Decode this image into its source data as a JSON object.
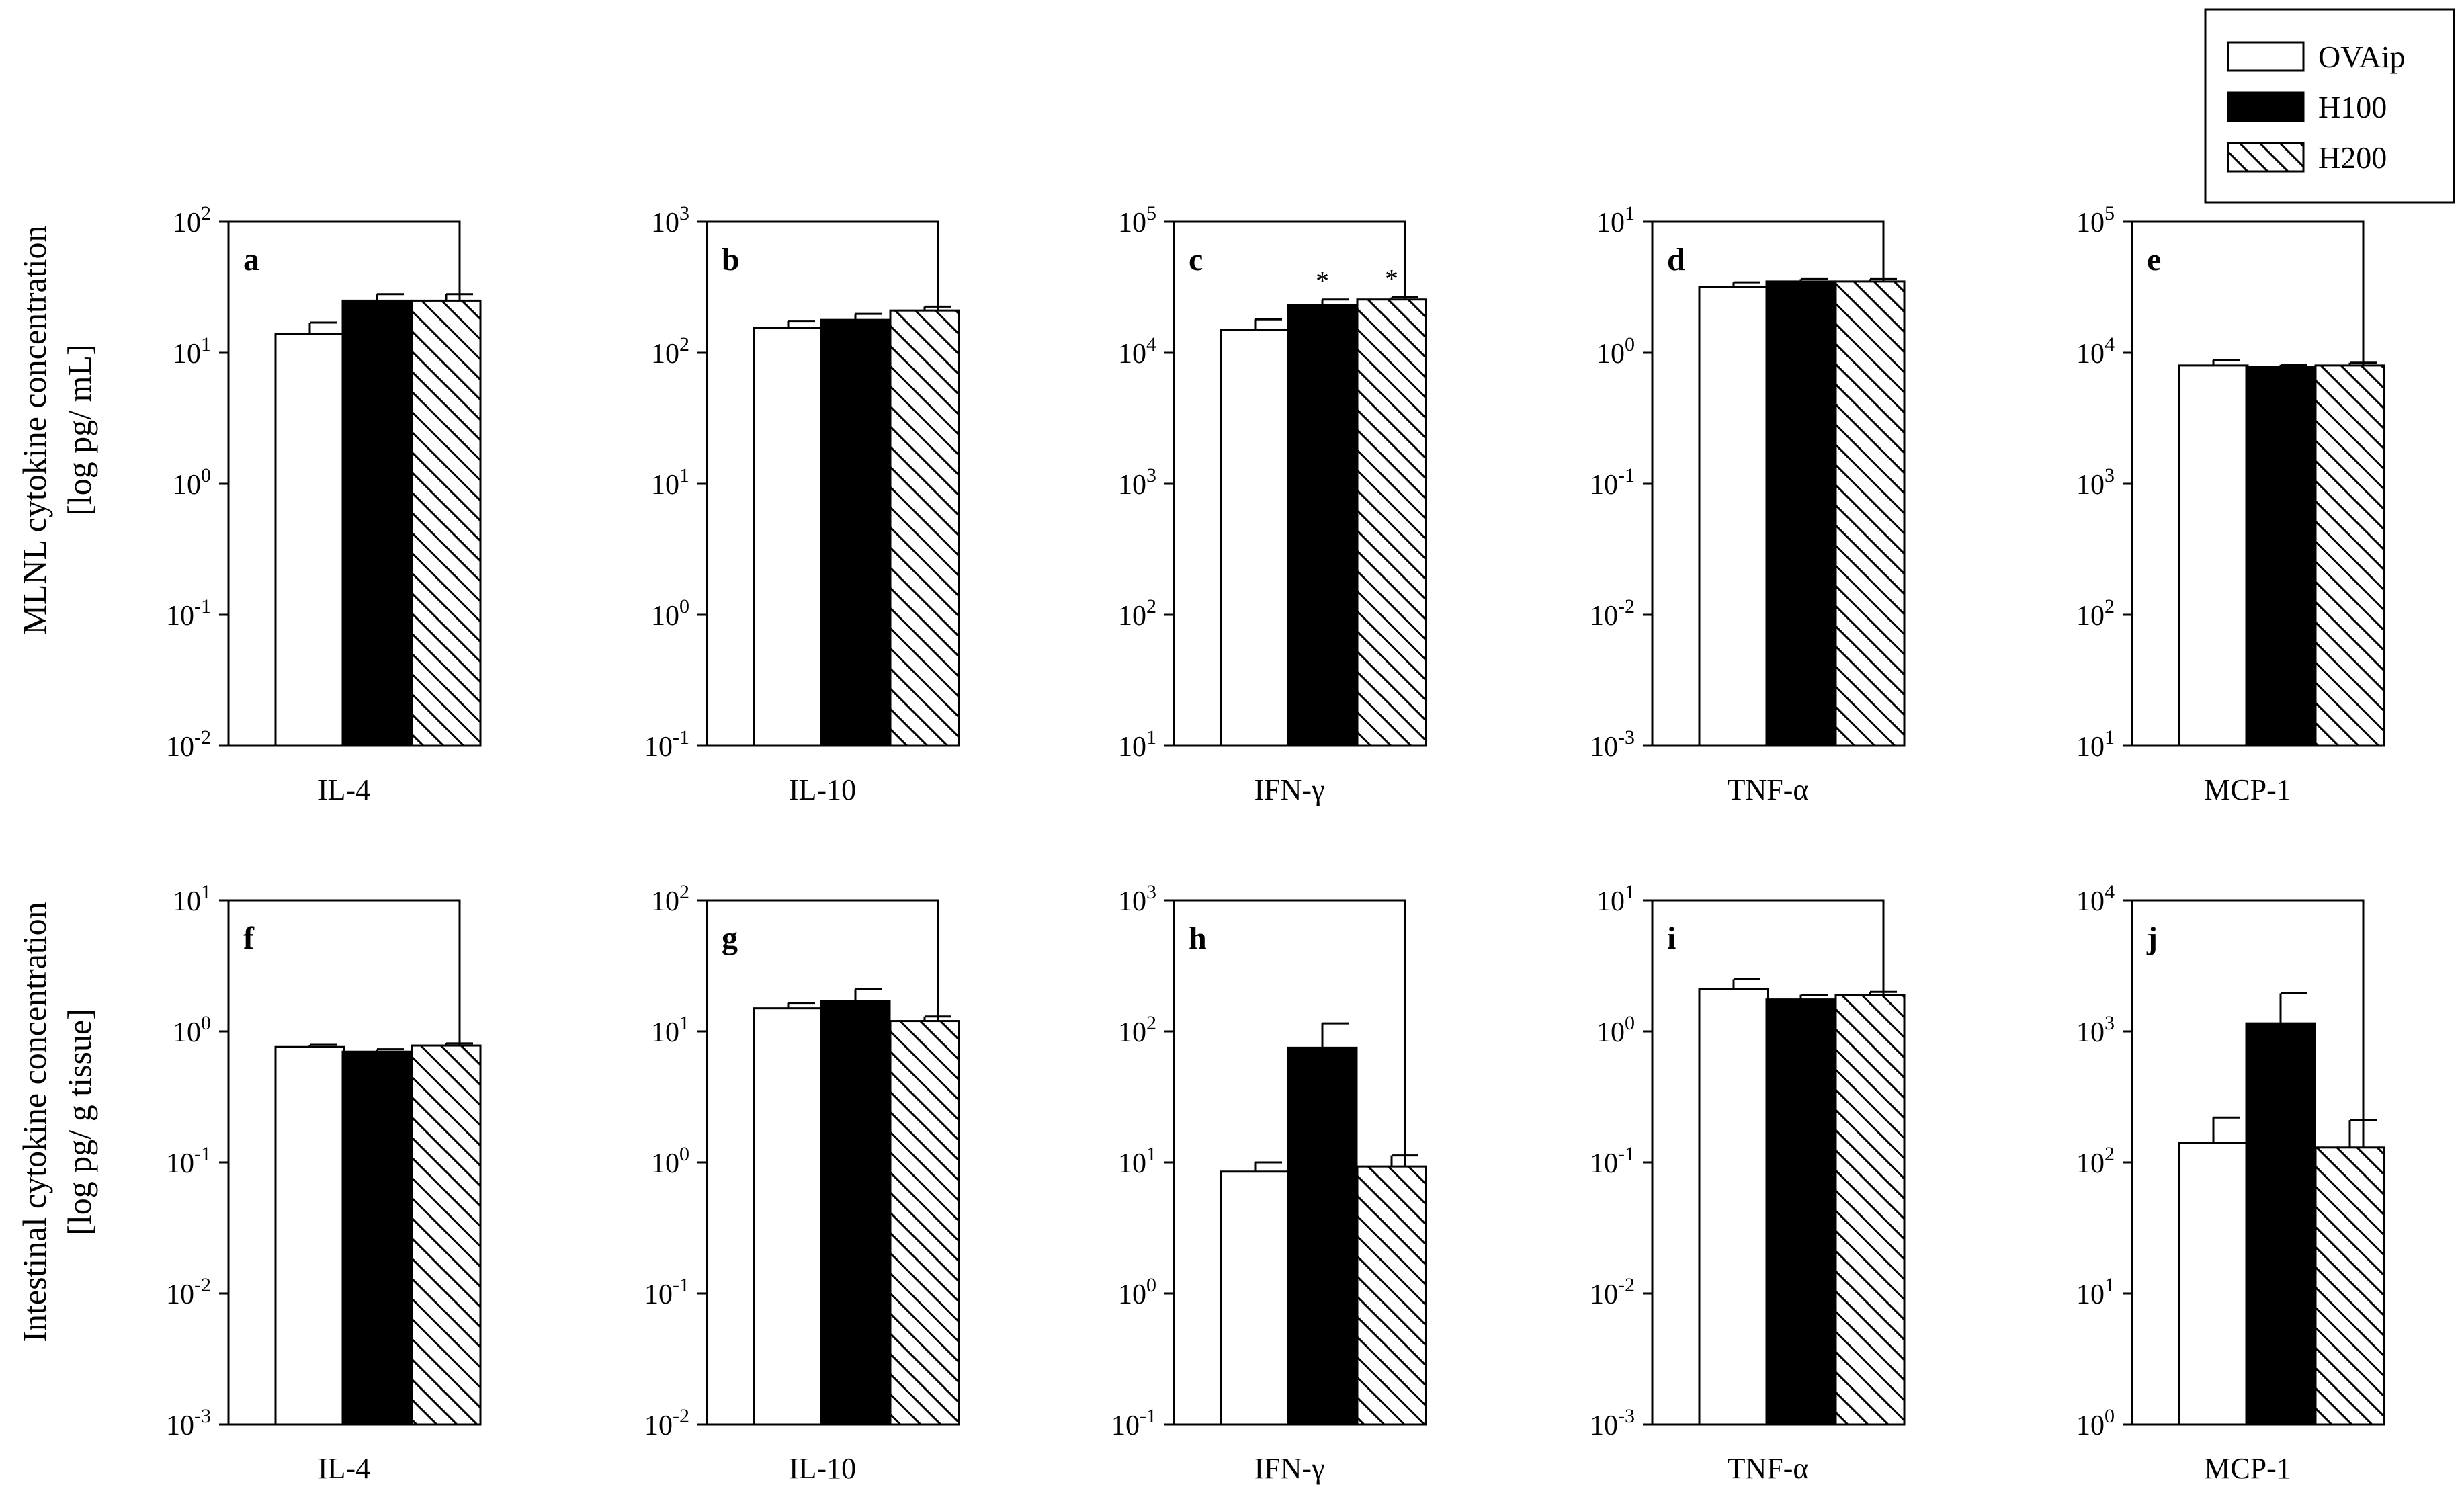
{
  "legend": {
    "placement": "top-right",
    "entries": [
      {
        "label": "OVAip",
        "fill": "white"
      },
      {
        "label": "H100",
        "fill": "black"
      },
      {
        "label": "H200",
        "fill": "hatch"
      }
    ]
  },
  "rows": [
    {
      "ylabel_line1": "MLNL cytokine concentration",
      "ylabel_line2": "[log pg/ mL]"
    },
    {
      "ylabel_line1": "Intestinal cytokine concentration",
      "ylabel_line2": "[log pg/ g tissue]"
    }
  ],
  "colors": {
    "bar_fill_h100": "#000000",
    "bar_fill_ovaip": "#ffffff",
    "stroke": "#000000"
  },
  "chart_data": [
    {
      "type": "bar",
      "panel": "a",
      "category": "IL-4",
      "yscale": "log",
      "ylim": [
        0.01,
        100
      ],
      "series": [
        {
          "name": "OVAip",
          "values": [
            14
          ],
          "err": [
            3
          ]
        },
        {
          "name": "H100",
          "values": [
            25
          ],
          "err": [
            3
          ]
        },
        {
          "name": "H200",
          "values": [
            25
          ],
          "err": [
            3
          ]
        }
      ],
      "significance": []
    },
    {
      "type": "bar",
      "panel": "b",
      "category": "IL-10",
      "yscale": "log",
      "ylim": [
        0.1,
        1000
      ],
      "series": [
        {
          "name": "OVAip",
          "values": [
            155
          ],
          "err": [
            20
          ]
        },
        {
          "name": "H100",
          "values": [
            178
          ],
          "err": [
            20
          ]
        },
        {
          "name": "H200",
          "values": [
            210
          ],
          "err": [
            15
          ]
        }
      ],
      "significance": []
    },
    {
      "type": "bar",
      "panel": "c",
      "category": "IFN-γ",
      "yscale": "log",
      "ylim": [
        10,
        100000
      ],
      "series": [
        {
          "name": "OVAip",
          "values": [
            15000
          ],
          "err": [
            3000
          ]
        },
        {
          "name": "H100",
          "values": [
            23000
          ],
          "err": [
            2500
          ]
        },
        {
          "name": "H200",
          "values": [
            25500
          ],
          "err": [
            1000
          ]
        }
      ],
      "significance": [
        "",
        "*",
        "*"
      ]
    },
    {
      "type": "bar",
      "panel": "d",
      "category": "TNF-α",
      "yscale": "log",
      "ylim": [
        0.001,
        10
      ],
      "series": [
        {
          "name": "OVAip",
          "values": [
            3.2
          ],
          "err": [
            0.25
          ]
        },
        {
          "name": "H100",
          "values": [
            3.5
          ],
          "err": [
            0.15
          ]
        },
        {
          "name": "H200",
          "values": [
            3.5
          ],
          "err": [
            0.15
          ]
        }
      ],
      "significance": []
    },
    {
      "type": "bar",
      "panel": "e",
      "category": "MCP-1",
      "yscale": "log",
      "ylim": [
        10,
        100000
      ],
      "series": [
        {
          "name": "OVAip",
          "values": [
            8000
          ],
          "err": [
            800
          ]
        },
        {
          "name": "H100",
          "values": [
            7800
          ],
          "err": [
            300
          ]
        },
        {
          "name": "H200",
          "values": [
            8000
          ],
          "err": [
            400
          ]
        }
      ],
      "significance": []
    },
    {
      "type": "bar",
      "panel": "f",
      "category": "IL-4",
      "yscale": "log",
      "ylim": [
        0.001,
        10
      ],
      "series": [
        {
          "name": "OVAip",
          "values": [
            0.76
          ],
          "err": [
            0.03
          ]
        },
        {
          "name": "H100",
          "values": [
            0.7
          ],
          "err": [
            0.03
          ]
        },
        {
          "name": "H200",
          "values": [
            0.78
          ],
          "err": [
            0.03
          ]
        }
      ],
      "significance": []
    },
    {
      "type": "bar",
      "panel": "g",
      "category": "IL-10",
      "yscale": "log",
      "ylim": [
        0.01,
        100
      ],
      "series": [
        {
          "name": "OVAip",
          "values": [
            15
          ],
          "err": [
            1.5
          ]
        },
        {
          "name": "H100",
          "values": [
            17
          ],
          "err": [
            4
          ]
        },
        {
          "name": "H200",
          "values": [
            12
          ],
          "err": [
            1
          ]
        }
      ],
      "significance": []
    },
    {
      "type": "bar",
      "panel": "h",
      "category": "IFN-γ",
      "yscale": "log",
      "ylim": [
        0.1,
        1000
      ],
      "series": [
        {
          "name": "OVAip",
          "values": [
            8.5
          ],
          "err": [
            1.5
          ]
        },
        {
          "name": "H100",
          "values": [
            75
          ],
          "err": [
            40
          ]
        },
        {
          "name": "H200",
          "values": [
            9.3
          ],
          "err": [
            2
          ]
        }
      ],
      "significance": []
    },
    {
      "type": "bar",
      "panel": "i",
      "category": "TNF-α",
      "yscale": "log",
      "ylim": [
        0.001,
        10
      ],
      "series": [
        {
          "name": "OVAip",
          "values": [
            2.1
          ],
          "err": [
            0.4
          ]
        },
        {
          "name": "H100",
          "values": [
            1.75
          ],
          "err": [
            0.15
          ]
        },
        {
          "name": "H200",
          "values": [
            1.9
          ],
          "err": [
            0.1
          ]
        }
      ],
      "significance": []
    },
    {
      "type": "bar",
      "panel": "j",
      "category": "MCP-1",
      "yscale": "log",
      "ylim": [
        1,
        10000
      ],
      "series": [
        {
          "name": "OVAip",
          "values": [
            140
          ],
          "err": [
            80
          ]
        },
        {
          "name": "H100",
          "values": [
            1150
          ],
          "err": [
            800
          ]
        },
        {
          "name": "H200",
          "values": [
            130
          ],
          "err": [
            80
          ]
        }
      ],
      "significance": []
    }
  ]
}
